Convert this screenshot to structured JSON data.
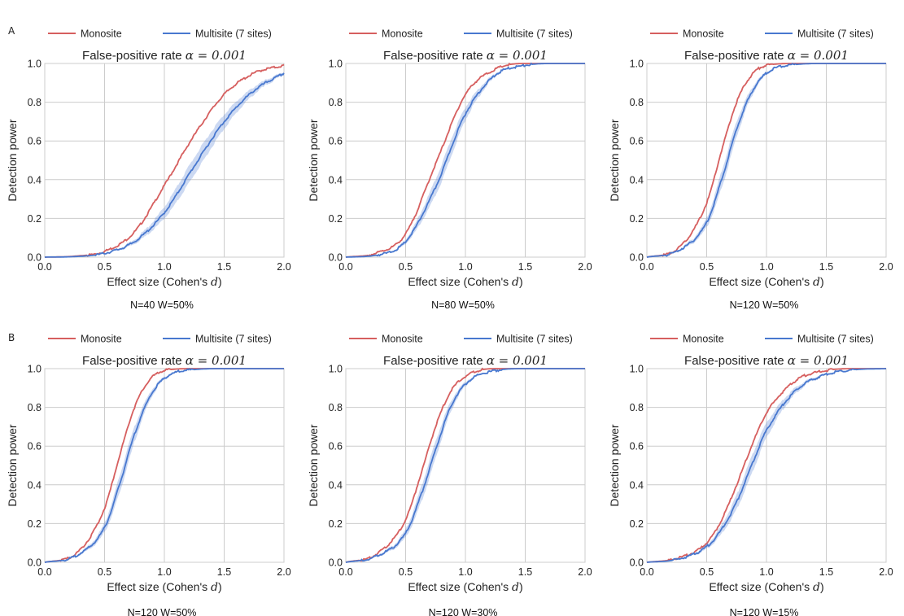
{
  "panel_labels": [
    "A",
    "B"
  ],
  "chart_data": [
    {
      "type": "line",
      "row": 0,
      "col": 0,
      "title": "False-positive rate α = 0.001",
      "title_prefix": "False-positive rate",
      "title_math": "α = 0.001",
      "xlabel": "Effect size (Cohen's d)",
      "xlabel_prefix": "Effect size (Cohen's ",
      "xlabel_var": "d",
      "xlabel_suffix": ")",
      "ylabel": "Detection power",
      "xlim": [
        0,
        2
      ],
      "ylim": [
        0,
        1
      ],
      "xticks": [
        "0.0",
        "0.5",
        "1.0",
        "1.5",
        "2.0"
      ],
      "yticks": [
        "0.0",
        "0.2",
        "0.4",
        "0.6",
        "0.8",
        "1.0"
      ],
      "grid": true,
      "legend": "top",
      "caption": "N=40 W=50%",
      "series": [
        {
          "name": "Monosite",
          "color": "#d65f5f",
          "x": [
            0,
            0.25,
            0.5,
            0.75,
            1.0,
            1.25,
            1.5,
            1.75,
            2.0
          ],
          "values": [
            0.0,
            0.005,
            0.03,
            0.13,
            0.37,
            0.63,
            0.84,
            0.95,
            0.99
          ]
        },
        {
          "name": "Multisite (7 sites)",
          "color": "#4878cf",
          "band": true,
          "x": [
            0,
            0.25,
            0.5,
            0.75,
            1.0,
            1.25,
            1.5,
            1.75,
            2.0
          ],
          "values": [
            0.0,
            0.003,
            0.02,
            0.08,
            0.23,
            0.47,
            0.7,
            0.86,
            0.95
          ]
        }
      ]
    },
    {
      "type": "line",
      "row": 0,
      "col": 1,
      "title": "False-positive rate α = 0.001",
      "title_prefix": "False-positive rate",
      "title_math": "α = 0.001",
      "xlabel": "Effect size (Cohen's d)",
      "xlabel_prefix": "Effect size (Cohen's ",
      "xlabel_var": "d",
      "xlabel_suffix": ")",
      "ylabel": "Detection power",
      "xlim": [
        0,
        2
      ],
      "ylim": [
        0,
        1
      ],
      "xticks": [
        "0.0",
        "0.5",
        "1.0",
        "1.5",
        "2.0"
      ],
      "yticks": [
        "0.0",
        "0.2",
        "0.4",
        "0.6",
        "0.8",
        "1.0"
      ],
      "grid": true,
      "legend": "top",
      "caption": "N=80 W=50%",
      "series": [
        {
          "name": "Monosite",
          "color": "#d65f5f",
          "x": [
            0,
            0.25,
            0.5,
            0.75,
            1.0,
            1.25,
            1.5,
            1.75,
            2.0
          ],
          "values": [
            0.0,
            0.02,
            0.12,
            0.48,
            0.84,
            0.97,
            1.0,
            1.0,
            1.0
          ]
        },
        {
          "name": "Multisite (7 sites)",
          "color": "#4878cf",
          "band": true,
          "x": [
            0,
            0.25,
            0.5,
            0.75,
            1.0,
            1.25,
            1.5,
            1.75,
            2.0
          ],
          "values": [
            0.0,
            0.01,
            0.08,
            0.36,
            0.74,
            0.94,
            0.99,
            1.0,
            1.0
          ]
        }
      ]
    },
    {
      "type": "line",
      "row": 0,
      "col": 2,
      "title": "False-positive rate α = 0.001",
      "title_prefix": "False-positive rate",
      "title_math": "α = 0.001",
      "xlabel": "Effect size (Cohen's d)",
      "xlabel_prefix": "Effect size (Cohen's ",
      "xlabel_var": "d",
      "xlabel_suffix": ")",
      "ylabel": "Detection power",
      "xlim": [
        0,
        2
      ],
      "ylim": [
        0,
        1
      ],
      "xticks": [
        "0.0",
        "0.5",
        "1.0",
        "1.5",
        "2.0"
      ],
      "yticks": [
        "0.0",
        "0.2",
        "0.4",
        "0.6",
        "0.8",
        "1.0"
      ],
      "grid": true,
      "legend": "top",
      "caption": "N=120 W=50%",
      "series": [
        {
          "name": "Monosite",
          "color": "#d65f5f",
          "x": [
            0,
            0.25,
            0.5,
            0.625,
            0.75,
            0.875,
            1.0,
            1.25,
            1.5,
            2.0
          ],
          "values": [
            0.0,
            0.04,
            0.28,
            0.55,
            0.8,
            0.94,
            0.99,
            1.0,
            1.0,
            1.0
          ]
        },
        {
          "name": "Multisite (7 sites)",
          "color": "#4878cf",
          "band": true,
          "x": [
            0,
            0.25,
            0.5,
            0.625,
            0.75,
            0.875,
            1.0,
            1.25,
            1.5,
            2.0
          ],
          "values": [
            0.0,
            0.03,
            0.18,
            0.4,
            0.66,
            0.85,
            0.95,
            0.995,
            1.0,
            1.0
          ]
        }
      ]
    },
    {
      "type": "line",
      "row": 1,
      "col": 0,
      "title": "False-positive rate α = 0.001",
      "title_prefix": "False-positive rate",
      "title_math": "α = 0.001",
      "xlabel": "Effect size (Cohen's d)",
      "xlabel_prefix": "Effect size (Cohen's ",
      "xlabel_var": "d",
      "xlabel_suffix": ")",
      "ylabel": "Detection power",
      "xlim": [
        0,
        2
      ],
      "ylim": [
        0,
        1
      ],
      "xticks": [
        "0.0",
        "0.5",
        "1.0",
        "1.5",
        "2.0"
      ],
      "yticks": [
        "0.0",
        "0.2",
        "0.4",
        "0.6",
        "0.8",
        "1.0"
      ],
      "grid": true,
      "legend": "top",
      "caption": "N=120 W=50%",
      "series": [
        {
          "name": "Monosite",
          "color": "#d65f5f",
          "x": [
            0,
            0.25,
            0.5,
            0.625,
            0.75,
            0.875,
            1.0,
            1.25,
            1.5,
            2.0
          ],
          "values": [
            0.0,
            0.04,
            0.28,
            0.55,
            0.8,
            0.94,
            0.99,
            1.0,
            1.0,
            1.0
          ]
        },
        {
          "name": "Multisite (7 sites)",
          "color": "#4878cf",
          "band": true,
          "x": [
            0,
            0.25,
            0.5,
            0.625,
            0.75,
            0.875,
            1.0,
            1.25,
            1.5,
            2.0
          ],
          "values": [
            0.0,
            0.03,
            0.18,
            0.4,
            0.66,
            0.85,
            0.95,
            0.995,
            1.0,
            1.0
          ]
        }
      ]
    },
    {
      "type": "line",
      "row": 1,
      "col": 1,
      "title": "False-positive rate α = 0.001",
      "title_prefix": "False-positive rate",
      "title_math": "α = 0.001",
      "xlabel": "Effect size (Cohen's d)",
      "xlabel_prefix": "Effect size (Cohen's ",
      "xlabel_var": "d",
      "xlabel_suffix": ")",
      "ylabel": "Detection power",
      "xlim": [
        0,
        2
      ],
      "ylim": [
        0,
        1
      ],
      "xticks": [
        "0.0",
        "0.5",
        "1.0",
        "1.5",
        "2.0"
      ],
      "yticks": [
        "0.0",
        "0.2",
        "0.4",
        "0.6",
        "0.8",
        "1.0"
      ],
      "grid": true,
      "legend": "top",
      "caption": "N=120 W=30%",
      "series": [
        {
          "name": "Monosite",
          "color": "#d65f5f",
          "x": [
            0,
            0.25,
            0.5,
            0.625,
            0.75,
            0.875,
            1.0,
            1.25,
            1.5,
            2.0
          ],
          "values": [
            0.0,
            0.04,
            0.22,
            0.45,
            0.7,
            0.88,
            0.96,
            1.0,
            1.0,
            1.0
          ]
        },
        {
          "name": "Multisite (7 sites)",
          "color": "#4878cf",
          "band": true,
          "x": [
            0,
            0.25,
            0.5,
            0.625,
            0.75,
            0.875,
            1.0,
            1.25,
            1.5,
            2.0
          ],
          "values": [
            0.0,
            0.03,
            0.15,
            0.34,
            0.58,
            0.8,
            0.92,
            0.99,
            1.0,
            1.0
          ]
        }
      ]
    },
    {
      "type": "line",
      "row": 1,
      "col": 2,
      "title": "False-positive rate α = 0.001",
      "title_prefix": "False-positive rate",
      "title_math": "α = 0.001",
      "xlabel": "Effect size (Cohen's d)",
      "xlabel_prefix": "Effect size (Cohen's ",
      "xlabel_var": "d",
      "xlabel_suffix": ")",
      "ylabel": "Detection power",
      "xlim": [
        0,
        2
      ],
      "ylim": [
        0,
        1
      ],
      "xticks": [
        "0.0",
        "0.5",
        "1.0",
        "1.5",
        "2.0"
      ],
      "yticks": [
        "0.0",
        "0.2",
        "0.4",
        "0.6",
        "0.8",
        "1.0"
      ],
      "grid": true,
      "legend": "top",
      "caption": "N=120 W=15%",
      "series": [
        {
          "name": "Monosite",
          "color": "#d65f5f",
          "x": [
            0,
            0.25,
            0.5,
            0.625,
            0.75,
            0.875,
            1.0,
            1.25,
            1.5,
            1.75,
            2.0
          ],
          "values": [
            0.0,
            0.02,
            0.1,
            0.22,
            0.4,
            0.6,
            0.77,
            0.94,
            0.99,
            1.0,
            1.0
          ]
        },
        {
          "name": "Multisite (7 sites)",
          "color": "#4878cf",
          "band": true,
          "x": [
            0,
            0.25,
            0.5,
            0.625,
            0.75,
            0.875,
            1.0,
            1.25,
            1.5,
            1.75,
            2.0
          ],
          "values": [
            0.0,
            0.015,
            0.08,
            0.17,
            0.31,
            0.5,
            0.68,
            0.89,
            0.97,
            0.995,
            1.0
          ]
        }
      ]
    }
  ]
}
